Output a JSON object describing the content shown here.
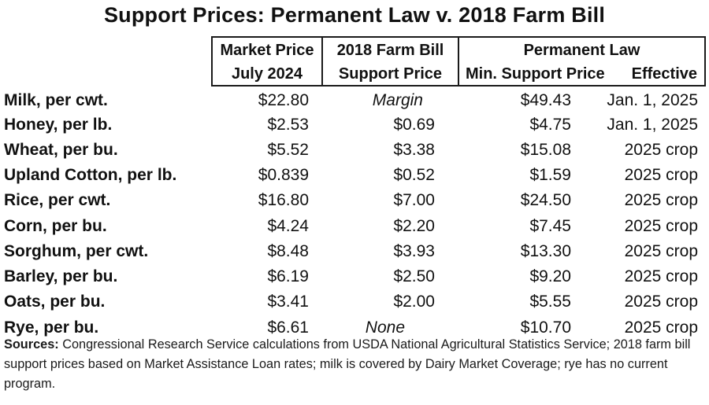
{
  "title": "Support Prices: Permanent Law v. 2018 Farm Bill",
  "headers": {
    "market_line1": "Market Price",
    "market_line2": "July 2024",
    "farm_line1": "2018 Farm Bill",
    "farm_line2": "Support Price",
    "perm_group": "Permanent Law",
    "perm_min": "Min. Support Price",
    "perm_eff": "Effective"
  },
  "rows": [
    {
      "commodity": "Milk, per cwt.",
      "market": "$22.80",
      "farm": "Margin",
      "min": "$49.43",
      "effective": "Jan. 1, 2025"
    },
    {
      "commodity": "Honey, per lb.",
      "market": "$2.53",
      "farm": "$0.69",
      "min": "$4.75",
      "effective": "Jan. 1, 2025"
    },
    {
      "commodity": "Wheat, per bu.",
      "market": "$5.52",
      "farm": "$3.38",
      "min": "$15.08",
      "effective": "2025 crop"
    },
    {
      "commodity": "Upland Cotton, per lb.",
      "market": "$0.839",
      "farm": "$0.52",
      "min": "$1.59",
      "effective": "2025 crop"
    },
    {
      "commodity": "Rice, per cwt.",
      "market": "$16.80",
      "farm": "$7.00",
      "min": "$24.50",
      "effective": "2025 crop"
    },
    {
      "commodity": "Corn, per bu.",
      "market": "$4.24",
      "farm": "$2.20",
      "min": "$7.45",
      "effective": "2025 crop"
    },
    {
      "commodity": "Sorghum, per cwt.",
      "market": "$8.48",
      "farm": "$3.93",
      "min": "$13.30",
      "effective": "2025 crop"
    },
    {
      "commodity": "Barley, per bu.",
      "market": "$6.19",
      "farm": "$2.50",
      "min": "$9.20",
      "effective": "2025 crop"
    },
    {
      "commodity": "Oats, per bu.",
      "market": "$3.41",
      "farm": "$2.00",
      "min": "$5.55",
      "effective": "2025 crop"
    },
    {
      "commodity": "Rye, per bu.",
      "market": "$6.61",
      "farm": "None",
      "min": "$10.70",
      "effective": "2025 crop"
    }
  ],
  "sources": {
    "label": "Sources:",
    "text": " Congressional Research Service calculations from USDA National Agricultural Statistics Service; 2018 farm bill support prices based on Market Assistance Loan rates; milk is covered by Dairy Market Coverage; rye has no current program."
  }
}
